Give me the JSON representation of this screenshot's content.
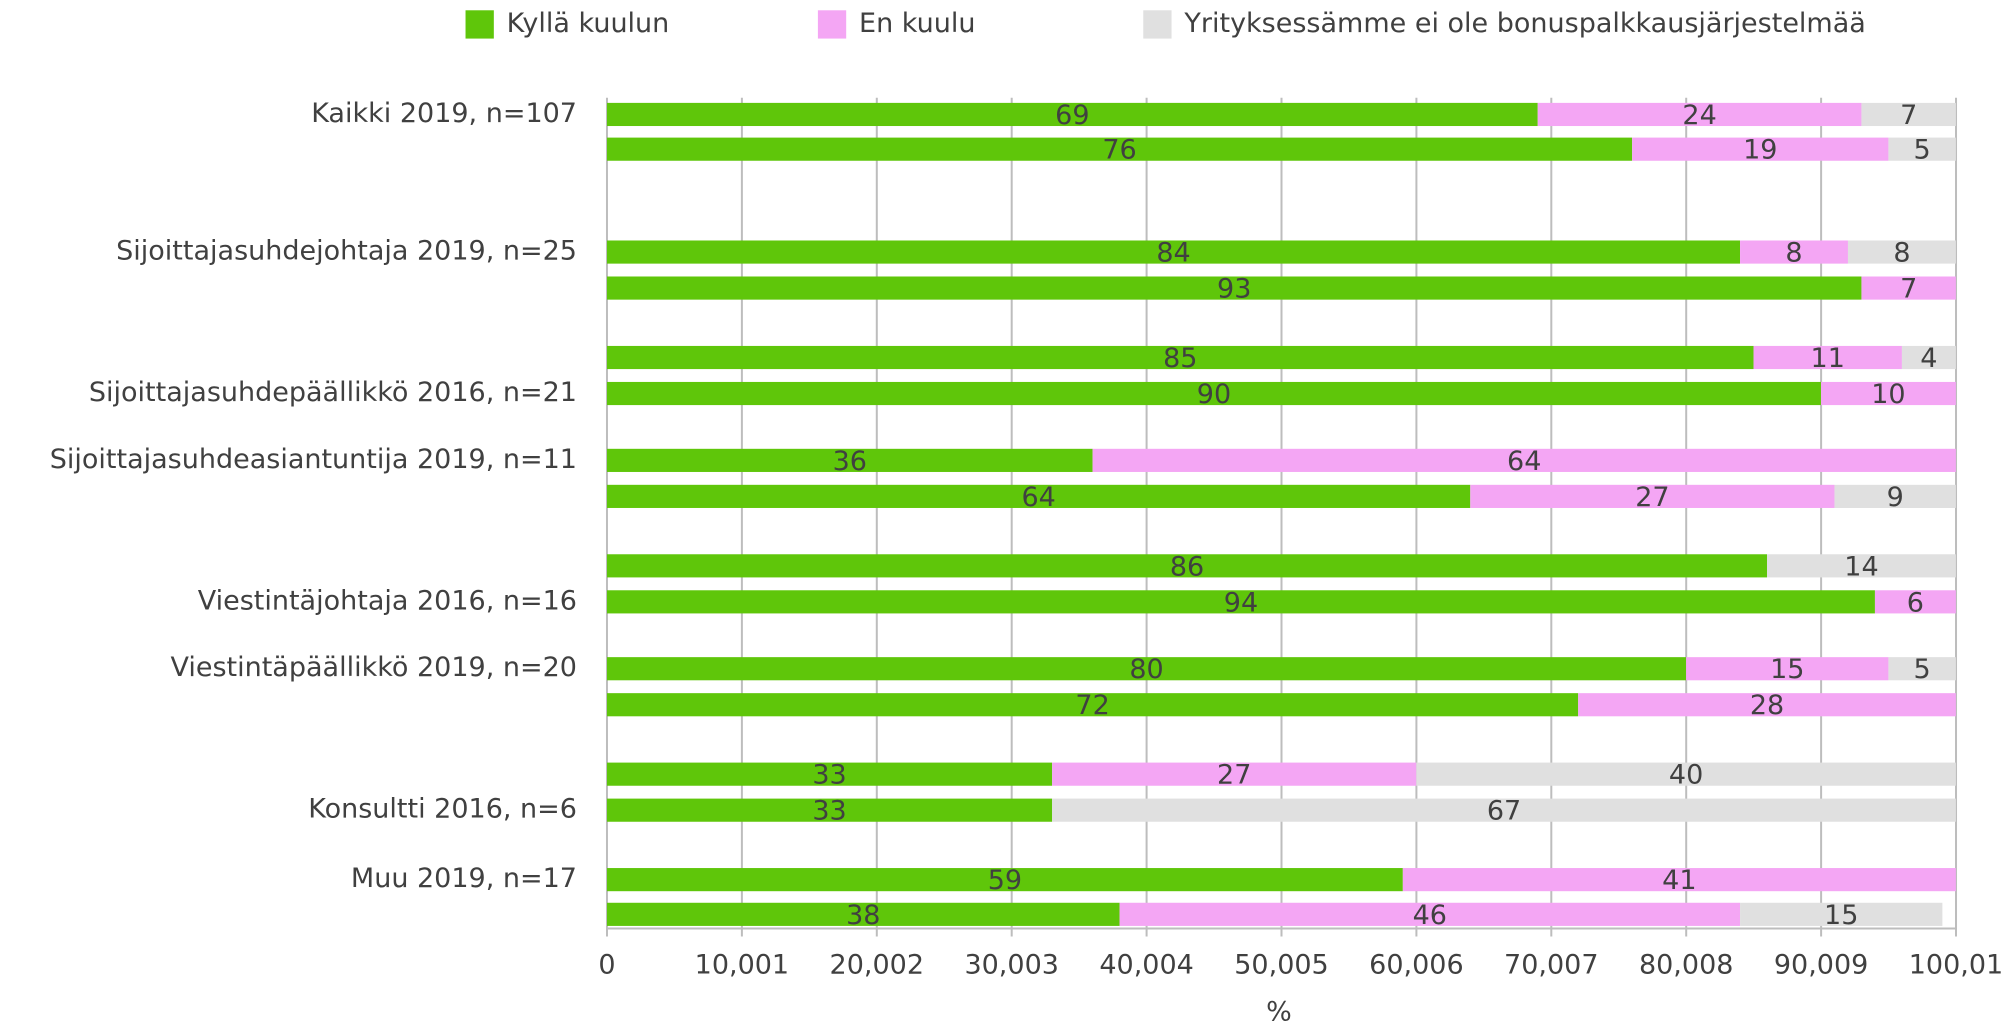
{
  "chart_data": {
    "type": "stacked_barh",
    "categories": [
      "Kaikki 2019, n=107",
      null,
      "Sijoittajasuhdejohtaja 2019, n=25",
      null,
      null,
      "Sijoittajasuhdepäällikkö 2016, n=21",
      "Sijoittajasuhdeasiantuntija 2019, n=11",
      null,
      null,
      "Viestintäjohtaja 2016, n=16",
      "Viestintäpäällikkö 2019, n=20",
      null,
      null,
      "Konsultti 2016, n=6",
      "Muu 2019, n=17",
      null
    ],
    "series": [
      {
        "name": "Kyllä kuulun",
        "color": "#5fc60a",
        "values": [
          69,
          76,
          84,
          93,
          85,
          90,
          36,
          64,
          86,
          94,
          80,
          72,
          33,
          33,
          59,
          38
        ]
      },
      {
        "name": "En kuulu",
        "color": "#f4a6f4",
        "values": [
          24,
          19,
          8,
          7,
          11,
          10,
          64,
          27,
          null,
          6,
          15,
          28,
          27,
          null,
          41,
          46
        ]
      },
      {
        "name": "Yrityksessämme ei ole bonuspalkkausjärjestelmää",
        "color": "#e0e0e0",
        "values": [
          7,
          5,
          8,
          null,
          4,
          null,
          null,
          9,
          14,
          null,
          5,
          null,
          40,
          67,
          null,
          15
        ]
      }
    ],
    "xlim": [
      0,
      100.01
    ],
    "xticks": [
      0,
      {
        "value": 10.001,
        "label": "10,001"
      },
      {
        "value": 20.002,
        "label": "20,002"
      },
      {
        "value": 30.003,
        "label": "30,003"
      },
      {
        "value": 40.004,
        "label": "40,004"
      },
      {
        "value": 50.005,
        "label": "50,005"
      },
      {
        "value": 60.006,
        "label": "60,006"
      },
      {
        "value": 70.007,
        "label": "70,007"
      },
      {
        "value": 80.008,
        "label": "80,008"
      },
      {
        "value": 90.009,
        "label": "90,009"
      },
      {
        "value": 100.01,
        "label": "100,01"
      }
    ],
    "xlabel": "%",
    "grid": true,
    "legend": "top"
  }
}
